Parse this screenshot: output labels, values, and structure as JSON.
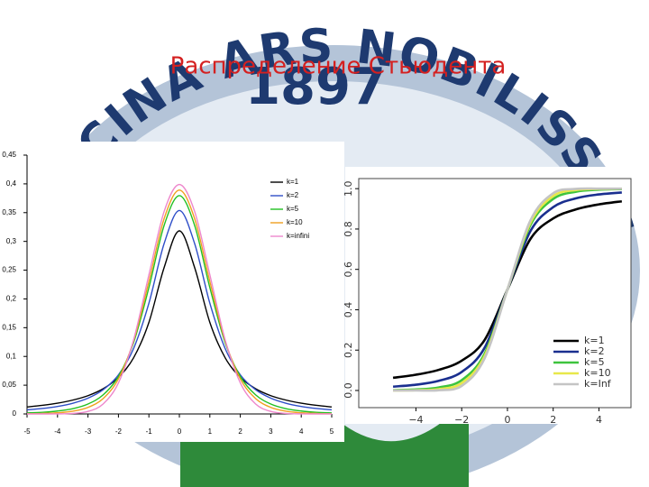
{
  "slide_title": "Распределение Стьюдента",
  "logo": {
    "motto": "MEDICINA ARS NOBILISSIMA",
    "year": "1897"
  },
  "chart_data": [
    {
      "type": "line",
      "legend": "upper right",
      "x": [
        -5,
        -4.5,
        -4,
        -3.5,
        -3,
        -2.5,
        -2,
        -1.5,
        -1,
        -0.5,
        0,
        0.5,
        1,
        1.5,
        2,
        2.5,
        3,
        3.5,
        4,
        4.5,
        5
      ],
      "xlim": [
        -5,
        5
      ],
      "xticks": [
        -5,
        -4,
        -3,
        -2,
        -1,
        0,
        1,
        2,
        3,
        4,
        5
      ],
      "ylim": [
        0,
        0.45
      ],
      "yticks": [
        0,
        {
          "value": 0.05,
          "label": "0,05"
        },
        {
          "value": 0.1,
          "label": "0,1"
        },
        {
          "value": 0.15,
          "label": "0,15"
        },
        {
          "value": 0.2,
          "label": "0,2"
        },
        {
          "value": 0.25,
          "label": "0,25"
        },
        {
          "value": 0.3,
          "label": "0,3"
        },
        {
          "value": 0.35,
          "label": "0,35"
        },
        {
          "value": 0.4,
          "label": "0,4"
        },
        {
          "value": 0.45,
          "label": "0,45"
        }
      ],
      "series": [
        {
          "name": "k=1",
          "color": "#000000",
          "values": [
            0.0122,
            0.015,
            0.0187,
            0.0241,
            0.0318,
            0.0439,
            0.0637,
            0.0979,
            0.1592,
            0.2546,
            0.3183,
            0.2546,
            0.1592,
            0.0979,
            0.0637,
            0.0439,
            0.0318,
            0.0241,
            0.0187,
            0.015,
            0.0122
          ]
        },
        {
          "name": "k=2",
          "color": "#2f4fc8",
          "values": [
            0.0071,
            0.0095,
            0.0131,
            0.0186,
            0.0274,
            0.0422,
            0.068,
            0.1141,
            0.1925,
            0.2963,
            0.3536,
            0.2963,
            0.1925,
            0.1141,
            0.068,
            0.0422,
            0.0274,
            0.0186,
            0.0131,
            0.0095,
            0.0071
          ]
        },
        {
          "name": "k=5",
          "color": "#22c022",
          "values": [
            0.0018,
            0.0029,
            0.0051,
            0.0092,
            0.0173,
            0.0333,
            0.0651,
            0.1245,
            0.2197,
            0.3279,
            0.3796,
            0.3279,
            0.2197,
            0.1245,
            0.0651,
            0.0333,
            0.0173,
            0.0092,
            0.0051,
            0.0029,
            0.0018
          ]
        },
        {
          "name": "k=10",
          "color": "#f0a020",
          "values": [
            0.0004,
            0.0009,
            0.002,
            0.0048,
            0.0114,
            0.0269,
            0.0611,
            0.1275,
            0.2304,
            0.3397,
            0.3891,
            0.3397,
            0.2304,
            0.1275,
            0.0611,
            0.0269,
            0.0114,
            0.0048,
            0.002,
            0.0009,
            0.0004
          ]
        },
        {
          "name": "k=infini",
          "color": "#ee88cc",
          "values": [
            0,
            0,
            0.0001,
            0.0009,
            0.0044,
            0.0175,
            0.054,
            0.1295,
            0.242,
            0.3521,
            0.3989,
            0.3521,
            0.242,
            0.1295,
            0.054,
            0.0175,
            0.0044,
            0.0009,
            0.0001,
            0,
            0
          ]
        }
      ]
    },
    {
      "type": "line",
      "legend": "lower right",
      "x": [
        -5,
        -4,
        -3,
        -2,
        -1,
        0,
        1,
        2,
        3,
        4,
        5
      ],
      "xlim": [
        -6.5,
        5.4
      ],
      "xticks": [
        {
          "value": -4,
          "label": "−4"
        },
        {
          "value": -2,
          "label": "−2"
        },
        0,
        2,
        4
      ],
      "ylim": [
        -0.085,
        1.05
      ],
      "yticks": [
        {
          "value": 0,
          "label": "0.0"
        },
        0.2,
        0.4,
        0.6,
        0.8,
        {
          "value": 1,
          "label": "1.0"
        }
      ],
      "series": [
        {
          "name": "k=1",
          "color": "#000000",
          "values": [
            0.0628,
            0.078,
            0.1024,
            0.1476,
            0.25,
            0.5,
            0.75,
            0.8524,
            0.8976,
            0.922,
            0.9372
          ]
        },
        {
          "name": "k=2",
          "color": "#1a2f8f",
          "values": [
            0.0189,
            0.0286,
            0.0477,
            0.0918,
            0.2113,
            0.5,
            0.7887,
            0.9082,
            0.9523,
            0.9714,
            0.9811
          ]
        },
        {
          "name": "k=5",
          "color": "#3ec43e",
          "values": [
            0.0021,
            0.0052,
            0.0151,
            0.051,
            0.1816,
            0.5,
            0.8184,
            0.949,
            0.9849,
            0.9948,
            0.9979
          ]
        },
        {
          "name": "k=10",
          "color": "#e8e84a",
          "values": [
            0.0003,
            0.0013,
            0.0067,
            0.0367,
            0.1704,
            0.5,
            0.8296,
            0.9633,
            0.9933,
            0.9987,
            0.9997
          ]
        },
        {
          "name": "k=Inf",
          "color": "#c4c4c4",
          "values": [
            0,
            0,
            0.0013,
            0.0228,
            0.1587,
            0.5,
            0.8413,
            0.9772,
            0.9987,
            1,
            1
          ]
        }
      ]
    }
  ]
}
